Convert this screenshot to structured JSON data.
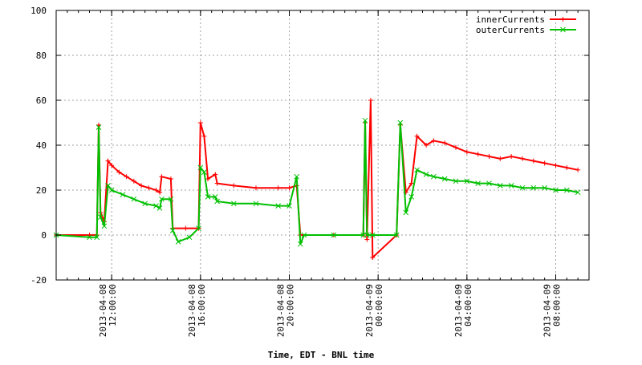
{
  "chart_data": {
    "type": "line",
    "title": "",
    "xlabel": "Time, EDT - BNL time",
    "ylabel": "",
    "ylim": [
      -20,
      100
    ],
    "yticks": [
      -20,
      0,
      20,
      40,
      60,
      80,
      100
    ],
    "grid": true,
    "legend_position": "top-right",
    "xlim": [
      "2013-04-08 09:30",
      "2013-04-09 09:30"
    ],
    "xticks": [
      {
        "x": "2013-04-08 12:00",
        "date": "2013-04-08",
        "time": "12:00:00"
      },
      {
        "x": "2013-04-08 16:00",
        "date": "2013-04-08",
        "time": "16:00:00"
      },
      {
        "x": "2013-04-08 20:00",
        "date": "2013-04-08",
        "time": "20:00:00"
      },
      {
        "x": "2013-04-09 00:00",
        "date": "2013-04-09",
        "time": "00:00:00"
      },
      {
        "x": "2013-04-09 04:00",
        "date": "2013-04-09",
        "time": "04:00:00"
      },
      {
        "x": "2013-04-09 08:00",
        "date": "2013-04-09",
        "time": "08:00:00"
      }
    ],
    "series": [
      {
        "name": "innerCurrents",
        "color": "#ff0000",
        "marker": "+",
        "points": [
          [
            "2013-04-08 09:30",
            0
          ],
          [
            "2013-04-08 11:00",
            0
          ],
          [
            "2013-04-08 11:20",
            0
          ],
          [
            "2013-04-08 11:25",
            49
          ],
          [
            "2013-04-08 11:30",
            10
          ],
          [
            "2013-04-08 11:40",
            6
          ],
          [
            "2013-04-08 11:50",
            33
          ],
          [
            "2013-04-08 12:00",
            31
          ],
          [
            "2013-04-08 12:20",
            28
          ],
          [
            "2013-04-08 12:40",
            26
          ],
          [
            "2013-04-08 13:00",
            24
          ],
          [
            "2013-04-08 13:20",
            22
          ],
          [
            "2013-04-08 13:40",
            21
          ],
          [
            "2013-04-08 14:00",
            20
          ],
          [
            "2013-04-08 14:10",
            19
          ],
          [
            "2013-04-08 14:15",
            26
          ],
          [
            "2013-04-08 14:40",
            25
          ],
          [
            "2013-04-08 14:45",
            3
          ],
          [
            "2013-04-08 15:20",
            3
          ],
          [
            "2013-04-08 15:55",
            3
          ],
          [
            "2013-04-08 16:00",
            50
          ],
          [
            "2013-04-08 16:10",
            44
          ],
          [
            "2013-04-08 16:20",
            25
          ],
          [
            "2013-04-08 16:40",
            27
          ],
          [
            "2013-04-08 16:45",
            23
          ],
          [
            "2013-04-08 17:30",
            22
          ],
          [
            "2013-04-08 18:30",
            21
          ],
          [
            "2013-04-08 19:30",
            21
          ],
          [
            "2013-04-08 20:00",
            21
          ],
          [
            "2013-04-08 20:20",
            22
          ],
          [
            "2013-04-08 20:30",
            0
          ],
          [
            "2013-04-08 22:00",
            0
          ],
          [
            "2013-04-08 23:20",
            0
          ],
          [
            "2013-04-08 23:25",
            50
          ],
          [
            "2013-04-08 23:30",
            -2
          ],
          [
            "2013-04-08 23:40",
            60
          ],
          [
            "2013-04-08 23:45",
            -10
          ],
          [
            "2013-04-09 00:50",
            0
          ],
          [
            "2013-04-09 01:00",
            49
          ],
          [
            "2013-04-09 01:15",
            19
          ],
          [
            "2013-04-09 01:30",
            23
          ],
          [
            "2013-04-09 01:45",
            44
          ],
          [
            "2013-04-09 02:10",
            40
          ],
          [
            "2013-04-09 02:30",
            42
          ],
          [
            "2013-04-09 03:00",
            41
          ],
          [
            "2013-04-09 03:30",
            39
          ],
          [
            "2013-04-09 04:00",
            37
          ],
          [
            "2013-04-09 04:30",
            36
          ],
          [
            "2013-04-09 05:00",
            35
          ],
          [
            "2013-04-09 05:30",
            34
          ],
          [
            "2013-04-09 06:00",
            35
          ],
          [
            "2013-04-09 06:30",
            34
          ],
          [
            "2013-04-09 07:00",
            33
          ],
          [
            "2013-04-09 07:30",
            32
          ],
          [
            "2013-04-09 08:00",
            31
          ],
          [
            "2013-04-09 08:30",
            30
          ],
          [
            "2013-04-09 09:00",
            29
          ]
        ]
      },
      {
        "name": "outerCurrents",
        "color": "#00c000",
        "marker": "x",
        "points": [
          [
            "2013-04-08 09:30",
            0
          ],
          [
            "2013-04-08 11:00",
            -1
          ],
          [
            "2013-04-08 11:20",
            -1
          ],
          [
            "2013-04-08 11:25",
            48
          ],
          [
            "2013-04-08 11:30",
            8
          ],
          [
            "2013-04-08 11:40",
            4
          ],
          [
            "2013-04-08 11:50",
            22
          ],
          [
            "2013-04-08 12:00",
            20
          ],
          [
            "2013-04-08 12:30",
            18
          ],
          [
            "2013-04-08 13:00",
            16
          ],
          [
            "2013-04-08 13:30",
            14
          ],
          [
            "2013-04-08 14:00",
            13
          ],
          [
            "2013-04-08 14:10",
            12
          ],
          [
            "2013-04-08 14:15",
            16
          ],
          [
            "2013-04-08 14:40",
            16
          ],
          [
            "2013-04-08 14:45",
            2
          ],
          [
            "2013-04-08 15:00",
            -3
          ],
          [
            "2013-04-08 15:30",
            -1
          ],
          [
            "2013-04-08 15:55",
            3
          ],
          [
            "2013-04-08 16:00",
            30
          ],
          [
            "2013-04-08 16:10",
            28
          ],
          [
            "2013-04-08 16:20",
            17
          ],
          [
            "2013-04-08 16:40",
            17
          ],
          [
            "2013-04-08 16:45",
            15
          ],
          [
            "2013-04-08 17:30",
            14
          ],
          [
            "2013-04-08 18:30",
            14
          ],
          [
            "2013-04-08 19:30",
            13
          ],
          [
            "2013-04-08 20:00",
            13
          ],
          [
            "2013-04-08 20:20",
            26
          ],
          [
            "2013-04-08 20:30",
            -4
          ],
          [
            "2013-04-08 20:40",
            0
          ],
          [
            "2013-04-08 22:00",
            0
          ],
          [
            "2013-04-08 23:20",
            0
          ],
          [
            "2013-04-08 23:25",
            51
          ],
          [
            "2013-04-08 23:30",
            0
          ],
          [
            "2013-04-08 23:45",
            0
          ],
          [
            "2013-04-09 00:50",
            0
          ],
          [
            "2013-04-09 01:00",
            50
          ],
          [
            "2013-04-09 01:15",
            10
          ],
          [
            "2013-04-09 01:30",
            17
          ],
          [
            "2013-04-09 01:45",
            29
          ],
          [
            "2013-04-09 02:10",
            27
          ],
          [
            "2013-04-09 02:30",
            26
          ],
          [
            "2013-04-09 03:00",
            25
          ],
          [
            "2013-04-09 03:30",
            24
          ],
          [
            "2013-04-09 04:00",
            24
          ],
          [
            "2013-04-09 04:30",
            23
          ],
          [
            "2013-04-09 05:00",
            23
          ],
          [
            "2013-04-09 05:30",
            22
          ],
          [
            "2013-04-09 06:00",
            22
          ],
          [
            "2013-04-09 06:30",
            21
          ],
          [
            "2013-04-09 07:00",
            21
          ],
          [
            "2013-04-09 07:30",
            21
          ],
          [
            "2013-04-09 08:00",
            20
          ],
          [
            "2013-04-09 08:30",
            20
          ],
          [
            "2013-04-09 09:00",
            19
          ]
        ]
      }
    ]
  }
}
